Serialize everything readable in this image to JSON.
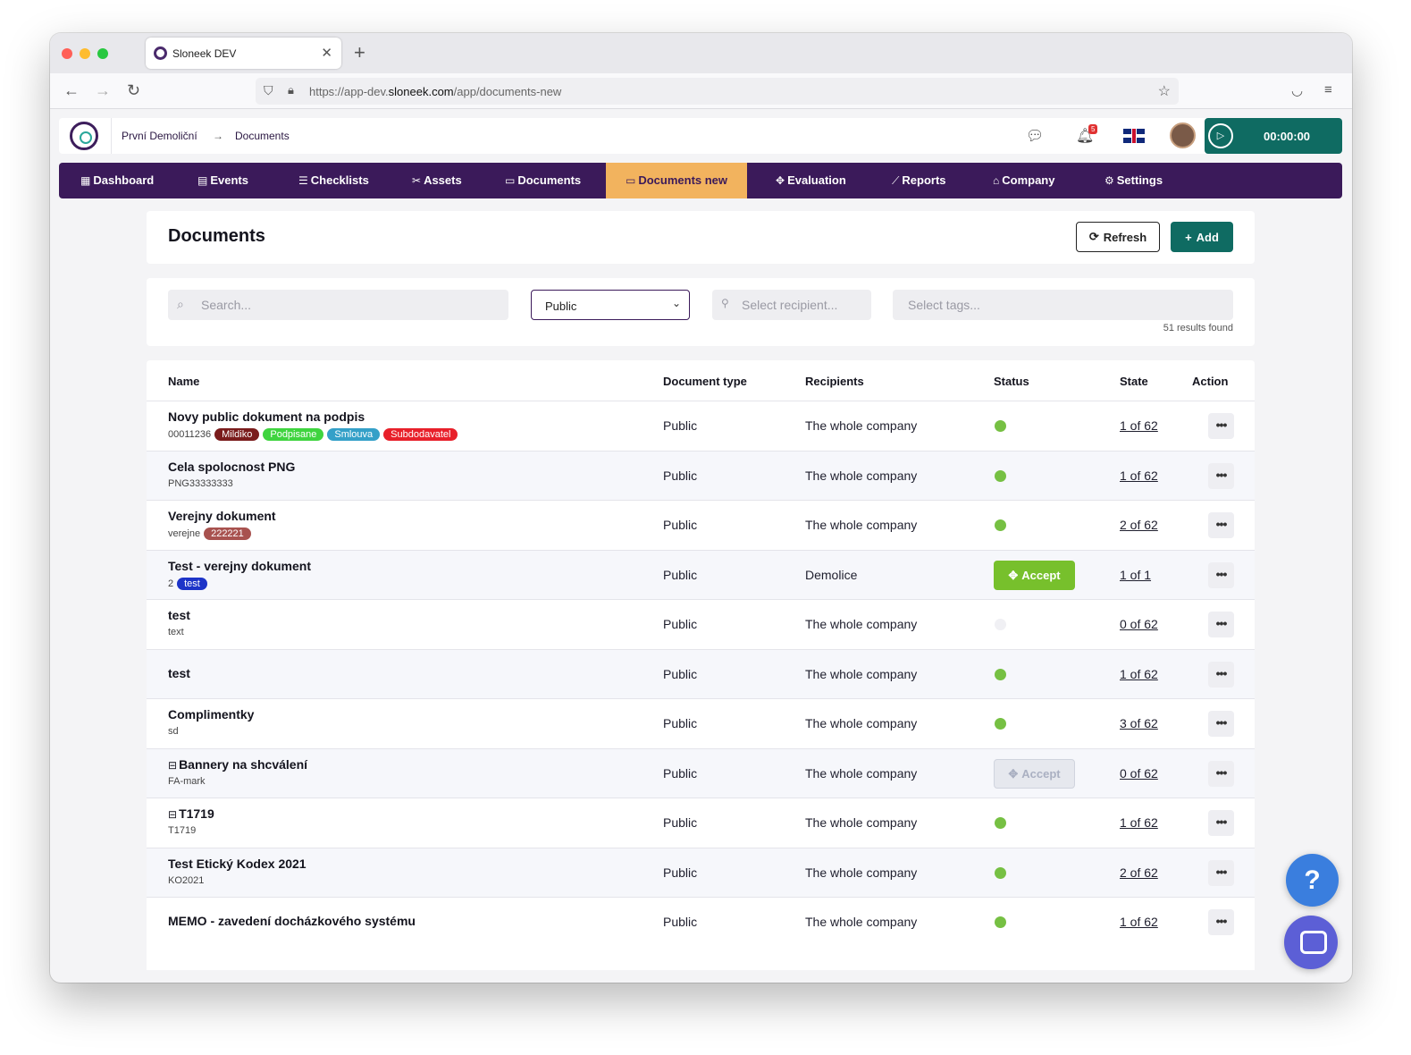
{
  "browser": {
    "tab_title": "Sloneek DEV",
    "url_prefix": "https://app-dev.",
    "url_domain": "sloneek.com",
    "url_path": "/app/documents-new"
  },
  "header": {
    "breadcrumb_company": "První Demoliční",
    "breadcrumb_arrow": "→",
    "breadcrumb_page": "Documents",
    "notification_count": "5",
    "timer": "00:00:00"
  },
  "menu": {
    "items": [
      {
        "label": "Dashboard",
        "icon": "grid-icon"
      },
      {
        "label": "Events",
        "icon": "calendar-icon"
      },
      {
        "label": "Checklists",
        "icon": "list-check-icon"
      },
      {
        "label": "Assets",
        "icon": "tools-icon"
      },
      {
        "label": "Documents",
        "icon": "folder-icon"
      },
      {
        "label": "Documents new",
        "icon": "folder-icon"
      },
      {
        "label": "Evaluation",
        "icon": "puzzle-icon"
      },
      {
        "label": "Reports",
        "icon": "chart-icon"
      },
      {
        "label": "Company",
        "icon": "bank-icon"
      },
      {
        "label": "Settings",
        "icon": "gear-icon"
      }
    ],
    "active": "Documents new"
  },
  "page": {
    "title": "Documents",
    "refresh_label": "Refresh",
    "add_label": "Add"
  },
  "filters": {
    "search_placeholder": "Search...",
    "type_value": "Public",
    "recipient_placeholder": "Select recipient...",
    "tags_placeholder": "Select tags...",
    "results": "51 results found"
  },
  "table": {
    "columns": [
      "Name",
      "Document type",
      "Recipients",
      "Status",
      "State",
      "Action"
    ],
    "rows": [
      {
        "name": "Novy public dokument na podpis",
        "code": "00011236",
        "tags": [
          {
            "label": "Mildiko",
            "color": "#7a1c1c"
          },
          {
            "label": "Podpisane",
            "color": "#3fd43f"
          },
          {
            "label": "Smlouva",
            "color": "#34a0c8"
          },
          {
            "label": "Subdodavatel",
            "color": "#e8202a"
          }
        ],
        "type": "Public",
        "recipients": "The whole company",
        "status": "done",
        "state": "1 of 62"
      },
      {
        "name": "Cela spolocnost PNG",
        "code": "PNG33333333",
        "tags": [],
        "type": "Public",
        "recipients": "The whole company",
        "status": "done",
        "state": "1 of 62"
      },
      {
        "name": "Verejny dokument",
        "code": "verejne",
        "tags": [
          {
            "label": "222221",
            "color": "#a8524f"
          }
        ],
        "type": "Public",
        "recipients": "The whole company",
        "status": "done",
        "state": "2 of 62"
      },
      {
        "name": "Test - verejny dokument",
        "code": "2",
        "tags": [
          {
            "label": "test",
            "color": "#1d34c8"
          }
        ],
        "type": "Public",
        "recipients": "Demolice",
        "status": "accept",
        "status_label": "Accept",
        "state": "1 of 1"
      },
      {
        "name": "test",
        "code": "text",
        "tags": [],
        "type": "Public",
        "recipients": "The whole company",
        "status": "empty",
        "state": "0 of 62"
      },
      {
        "name": "test",
        "code": "",
        "tags": [],
        "type": "Public",
        "recipients": "The whole company",
        "status": "done",
        "state": "1 of 62"
      },
      {
        "name": "Complimentky",
        "code": "sd",
        "tags": [],
        "type": "Public",
        "recipients": "The whole company",
        "status": "done",
        "state": "3 of 62"
      },
      {
        "name": "Bannery na shcválení",
        "code": "FA-mark",
        "tags": [],
        "archived": true,
        "type": "Public",
        "recipients": "The whole company",
        "status": "accept-disabled",
        "status_label": "Accept",
        "state": "0 of 62"
      },
      {
        "name": "T1719",
        "code": "T1719",
        "tags": [],
        "archived": true,
        "type": "Public",
        "recipients": "The whole company",
        "status": "done",
        "state": "1 of 62"
      },
      {
        "name": "Test Etický Kodex 2021",
        "code": "KO2021",
        "tags": [],
        "type": "Public",
        "recipients": "The whole company",
        "status": "done",
        "state": "2 of 62"
      },
      {
        "name": "MEMO - zavedení docházkového systému",
        "code": "",
        "tags": [],
        "type": "Public",
        "recipients": "The whole company",
        "status": "done",
        "state": "1 of 62"
      }
    ]
  },
  "floating": {
    "help_label": "?"
  }
}
